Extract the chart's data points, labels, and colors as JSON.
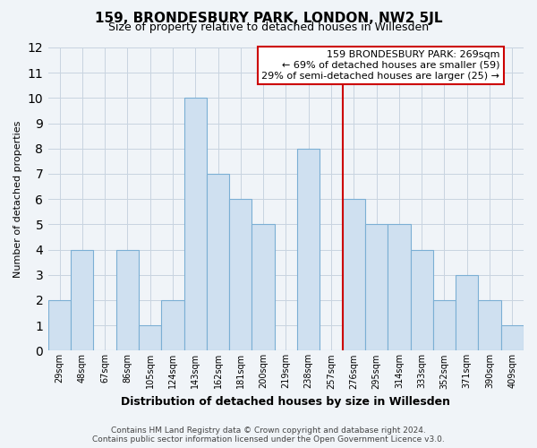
{
  "title": "159, BRONDESBURY PARK, LONDON, NW2 5JL",
  "subtitle": "Size of property relative to detached houses in Willesden",
  "xlabel": "Distribution of detached houses by size in Willesden",
  "ylabel": "Number of detached properties",
  "bar_labels": [
    "29sqm",
    "48sqm",
    "67sqm",
    "86sqm",
    "105sqm",
    "124sqm",
    "143sqm",
    "162sqm",
    "181sqm",
    "200sqm",
    "219sqm",
    "238sqm",
    "257sqm",
    "276sqm",
    "295sqm",
    "314sqm",
    "333sqm",
    "352sqm",
    "371sqm",
    "390sqm",
    "409sqm"
  ],
  "bar_values": [
    2,
    4,
    0,
    4,
    1,
    2,
    10,
    7,
    6,
    5,
    0,
    8,
    0,
    6,
    5,
    5,
    4,
    2,
    3,
    2,
    1
  ],
  "bar_color": "#cfe0f0",
  "bar_edge_color": "#7bafd4",
  "ylim": [
    0,
    12
  ],
  "yticks": [
    0,
    1,
    2,
    3,
    4,
    5,
    6,
    7,
    8,
    9,
    10,
    11,
    12
  ],
  "ref_line_color": "#cc0000",
  "annotation_title": "159 BRONDESBURY PARK: 269sqm",
  "annotation_line1": "← 69% of detached houses are smaller (59)",
  "annotation_line2": "29% of semi-detached houses are larger (25) →",
  "annotation_box_color": "#ffffff",
  "annotation_box_edge_color": "#cc0000",
  "footer1": "Contains HM Land Registry data © Crown copyright and database right 2024.",
  "footer2": "Contains public sector information licensed under the Open Government Licence v3.0.",
  "background_color": "#f0f4f8",
  "plot_bg_color": "#f0f4f8",
  "grid_color": "#c8d4e0",
  "title_fontsize": 11,
  "subtitle_fontsize": 9,
  "ylabel_fontsize": 8,
  "xlabel_fontsize": 9,
  "tick_fontsize": 7,
  "footer_fontsize": 6.5
}
